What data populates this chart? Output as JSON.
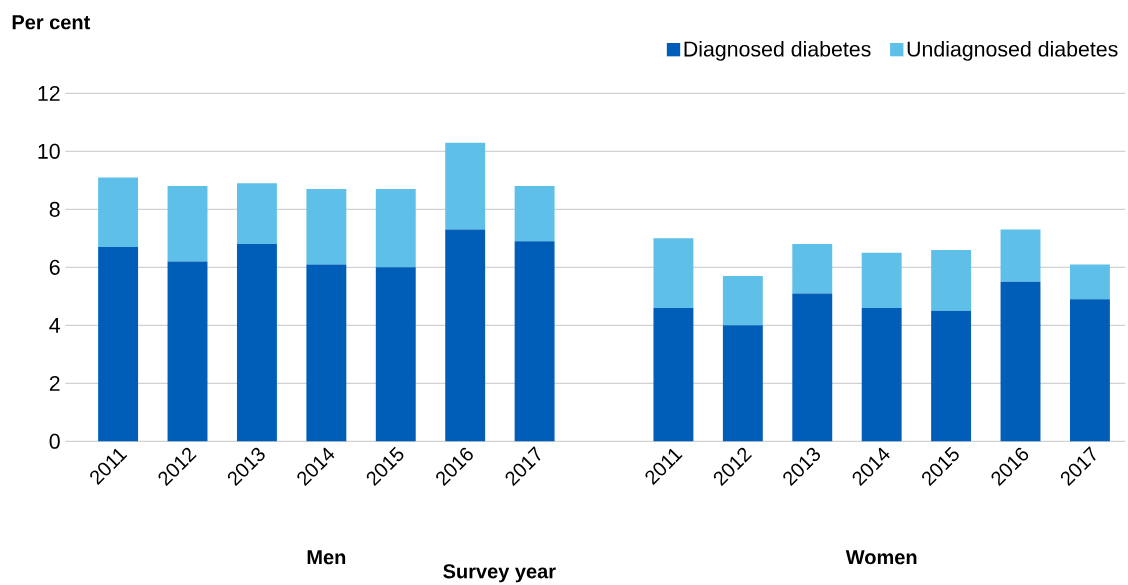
{
  "chart_data": {
    "type": "bar",
    "stacked": true,
    "categories": [
      "2011",
      "2012",
      "2013",
      "2014",
      "2015",
      "2016",
      "2017",
      null,
      "2011",
      "2012",
      "2013",
      "2014",
      "2015",
      "2016",
      "2017"
    ],
    "series": [
      {
        "name": "Diagnosed diabetes",
        "color": "#005eb8",
        "values": [
          6.7,
          6.2,
          6.8,
          6.1,
          6.0,
          7.3,
          6.9,
          null,
          4.6,
          4.0,
          5.1,
          4.6,
          4.5,
          5.5,
          4.9
        ]
      },
      {
        "name": "Undiagnosed diabetes",
        "color": "#5ec0e8",
        "values": [
          2.4,
          2.6,
          2.1,
          2.6,
          2.7,
          3.0,
          1.9,
          null,
          2.4,
          1.7,
          1.7,
          1.9,
          2.1,
          1.8,
          1.2
        ]
      }
    ],
    "ylabel": "Per cent",
    "xlabel": "Survey year",
    "annotations": [
      "Men",
      "Women"
    ],
    "ylim": [
      0,
      12
    ],
    "yticks": [
      0,
      2,
      4,
      6,
      8,
      10,
      12
    ],
    "grid": "y",
    "legend": "top right"
  }
}
